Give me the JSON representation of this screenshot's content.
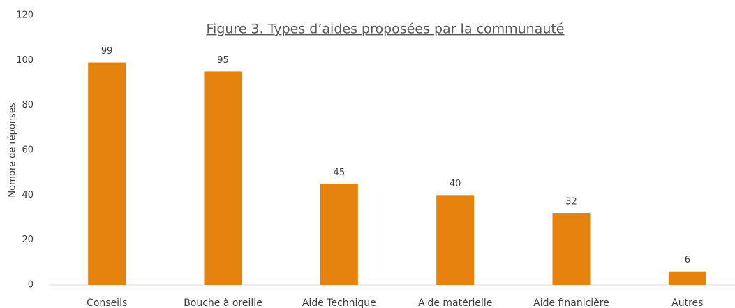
{
  "chart_data": {
    "type": "bar",
    "title": "Figure 3. Types d’aides proposées par la communauté",
    "y_label": "Nombre de réponses",
    "categories": [
      "Conseils",
      "Bouche à oreille",
      "Aide Technique",
      "Aide matérielle",
      "Aide finanicière",
      "Autres"
    ],
    "values": [
      99,
      95,
      45,
      40,
      32,
      6
    ],
    "color": "#e6830f",
    "ylim": [
      0,
      120
    ],
    "yticks": [
      0,
      20,
      40,
      60,
      80,
      100,
      120
    ],
    "grid": false
  }
}
